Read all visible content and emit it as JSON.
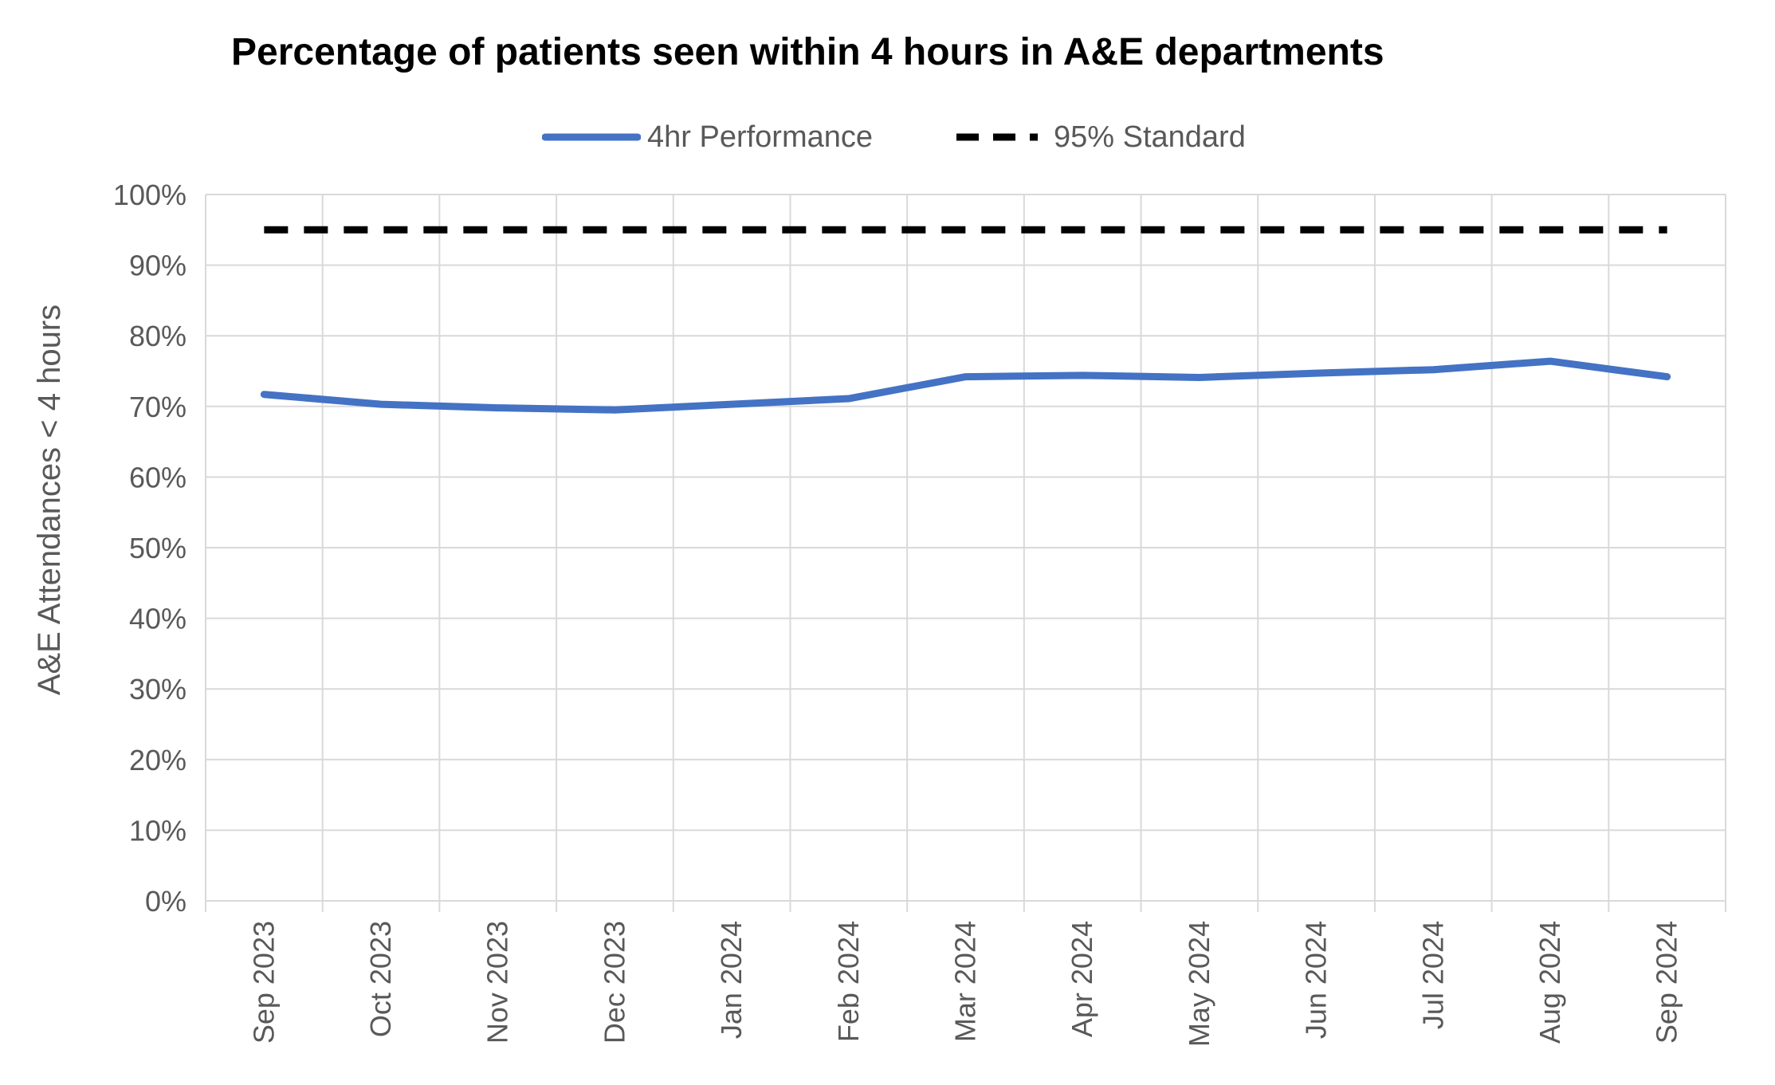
{
  "chart_data": {
    "type": "line",
    "title": "Percentage of patients seen within 4 hours in A&E departments",
    "xlabel": "",
    "ylabel": "A&E Attendances < 4 hours",
    "categories": [
      "Sep 2023",
      "Oct 2023",
      "Nov 2023",
      "Dec 2023",
      "Jan 2024",
      "Feb 2024",
      "Mar 2024",
      "Apr 2024",
      "May 2024",
      "Jun 2024",
      "Jul 2024",
      "Aug 2024",
      "Sep 2024"
    ],
    "y_ticks": [
      "0%",
      "10%",
      "20%",
      "30%",
      "40%",
      "50%",
      "60%",
      "70%",
      "80%",
      "90%",
      "100%"
    ],
    "ylim": [
      0,
      100
    ],
    "grid": true,
    "legend_position": "top",
    "series": [
      {
        "name": "4hr Performance",
        "color": "#4472C4",
        "style": "solid",
        "values": [
          71.7,
          70.3,
          69.8,
          69.5,
          70.3,
          71.1,
          74.2,
          74.4,
          74.1,
          74.7,
          75.2,
          76.4,
          74.2
        ]
      },
      {
        "name": "95% Standard",
        "color": "#000000",
        "style": "dashed",
        "values": [
          95,
          95,
          95,
          95,
          95,
          95,
          95,
          95,
          95,
          95,
          95,
          95,
          95
        ]
      }
    ]
  }
}
